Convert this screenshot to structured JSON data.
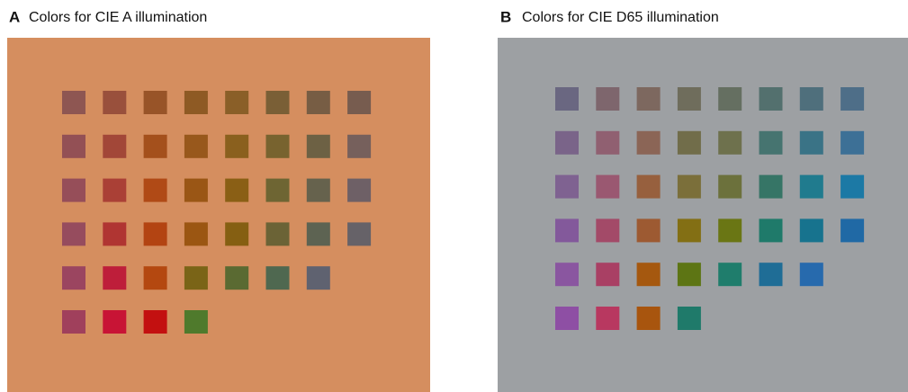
{
  "panels": [
    {
      "letter": "A",
      "title": "Colors for CIE A illumination",
      "background": "#d58e5f",
      "rows": [
        [
          "#8e5652",
          "#99503c",
          "#985428",
          "#8e5a24",
          "#8a5f28",
          "#7a5f36",
          "#775d44",
          "#775c4f"
        ],
        [
          "#935055",
          "#a24738",
          "#a4501c",
          "#98581c",
          "#8a601e",
          "#78632f",
          "#6d6144",
          "#76605c"
        ],
        [
          "#964e59",
          "#aa4036",
          "#b04a16",
          "#9a5615",
          "#8a5f15",
          "#6e6533",
          "#66624d",
          "#6e6066"
        ],
        [
          "#964c5e",
          "#b03532",
          "#b34412",
          "#9b5612",
          "#855f12",
          "#6b6336",
          "#5d6352",
          "#666268"
        ],
        [
          "#9b4560",
          "#be1e3a",
          "#b44810",
          "#7a6417",
          "#5a6a32",
          "#4f6850",
          "#5f6270"
        ],
        [
          "#a0405c",
          "#c81435",
          "#c31010",
          "#4f7a2c"
        ]
      ]
    },
    {
      "letter": "B",
      "title": "Colors for CIE D65 illumination",
      "background": "#9da0a3",
      "rows": [
        [
          "#6a6781",
          "#7e666d",
          "#7d685f",
          "#6f6d5c",
          "#656f61",
          "#53706e",
          "#4f6f7c",
          "#4e6e88"
        ],
        [
          "#7a6489",
          "#906071",
          "#8b6556",
          "#716d4a",
          "#6e714d",
          "#467470",
          "#3a7386",
          "#3d7096"
        ],
        [
          "#7f6291",
          "#9a5871",
          "#97603e",
          "#7b6f3a",
          "#6c713c",
          "#367566",
          "#207b8e",
          "#1c79a5"
        ],
        [
          "#83599b",
          "#a34a68",
          "#9d5a32",
          "#836f14",
          "#6a7614",
          "#1f7a6a",
          "#17738e",
          "#2069a5"
        ],
        [
          "#8a56a0",
          "#a94064",
          "#a5580f",
          "#5d7514",
          "#1f7d6c",
          "#1f6d96",
          "#276aad"
        ],
        [
          "#8e4fa4",
          "#b83860",
          "#a8550e",
          "#1f7a6a"
        ]
      ]
    }
  ]
}
